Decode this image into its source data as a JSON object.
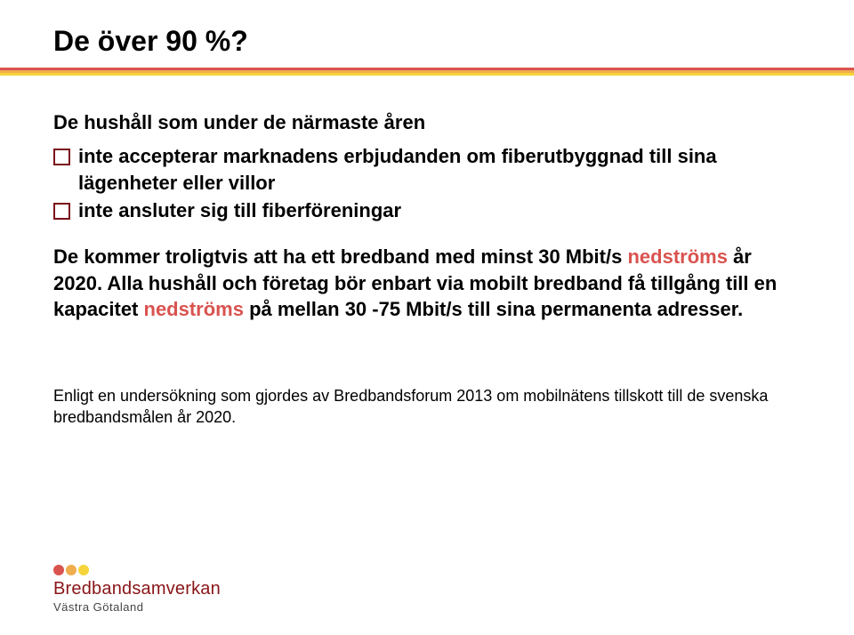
{
  "title": "De över 90 %?",
  "stripes": [
    "#d9534f",
    "#f0ad4e",
    "#f6d43a"
  ],
  "lead": "De hushåll som under de närmaste åren",
  "bullets": [
    "inte accepterar marknadens erbjudanden om fiberutbyggnad till sina lägenheter eller villor",
    "inte ansluter sig till fiberföreningar"
  ],
  "paragraph": {
    "pre": "De kommer troligtvis att ha ett bredband med minst 30 Mbit/s ",
    "hl1": "nedströms",
    "mid1": " år 2020. Alla hushåll och företag bör enbart via mobilt bredband få tillgång till en kapacitet ",
    "hl2": "nedströms",
    "mid2": " på mellan 30 -75 Mbit/s till sina permanenta adresser."
  },
  "footnote": "Enligt en undersökning som gjordes av Bredbandsforum 2013 om mobilnätens tillskott till de svenska bredbandsmålen år 2020.",
  "logo": {
    "line1": "Bredbandsamverkan",
    "line2": "Västra Götaland",
    "text1_color": "#8a1518",
    "text2_color": "#444444",
    "dots": [
      "#d9534f",
      "#f0ad4e",
      "#f6d43a"
    ]
  },
  "highlight_color": "#d9534f",
  "bullet_border_color": "#7a0f1a"
}
